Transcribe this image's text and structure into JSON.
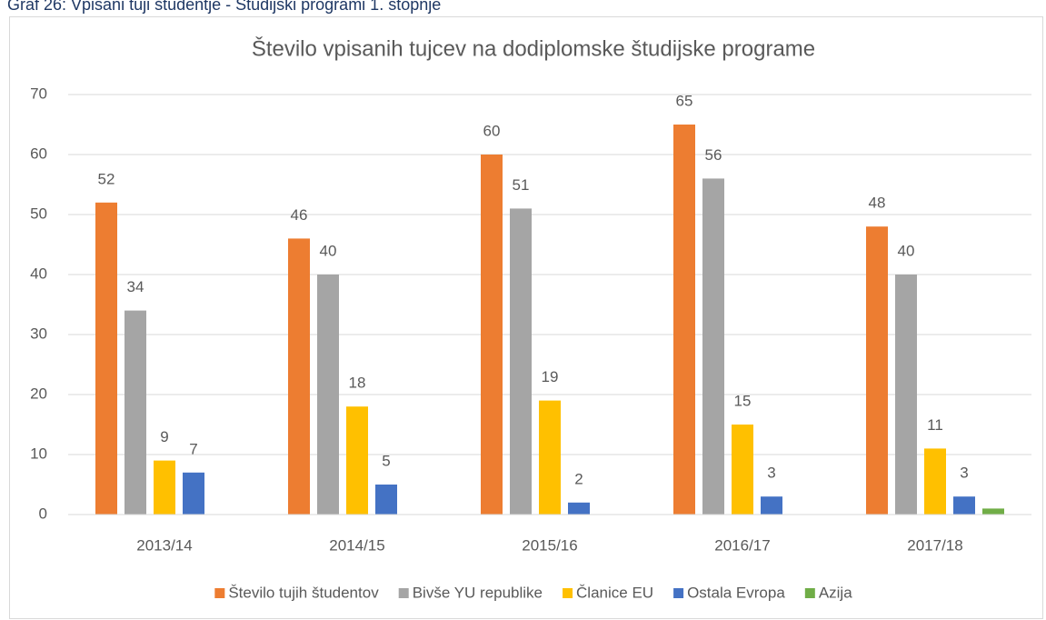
{
  "caption": "Graf 26: Vpisani tuji študentje - Študijski programi 1. stopnje",
  "chart_data": {
    "type": "bar",
    "title": "Število vpisanih tujcev na dodiplomske študijske programe",
    "categories": [
      "2013/14",
      "2014/15",
      "2015/16",
      "2016/17",
      "2017/18"
    ],
    "series": [
      {
        "name": "Število tujih študentov",
        "color": "#ed7d31",
        "values": [
          52,
          46,
          60,
          65,
          48
        ]
      },
      {
        "name": "Bivše YU republike",
        "color": "#a5a5a5",
        "values": [
          34,
          40,
          51,
          56,
          40
        ]
      },
      {
        "name": "Članice EU",
        "color": "#ffc000",
        "values": [
          9,
          18,
          19,
          15,
          11
        ]
      },
      {
        "name": "Ostala Evropa",
        "color": "#4472c4",
        "values": [
          7,
          5,
          2,
          3,
          3
        ]
      },
      {
        "name": "Azija",
        "color": "#70ad47",
        "values": [
          null,
          null,
          null,
          null,
          1
        ],
        "data_labels": false
      }
    ],
    "ylim": [
      0,
      70
    ],
    "yticks": [
      0,
      10,
      20,
      30,
      40,
      50,
      60,
      70
    ],
    "grid": true,
    "legend": "bottom"
  }
}
